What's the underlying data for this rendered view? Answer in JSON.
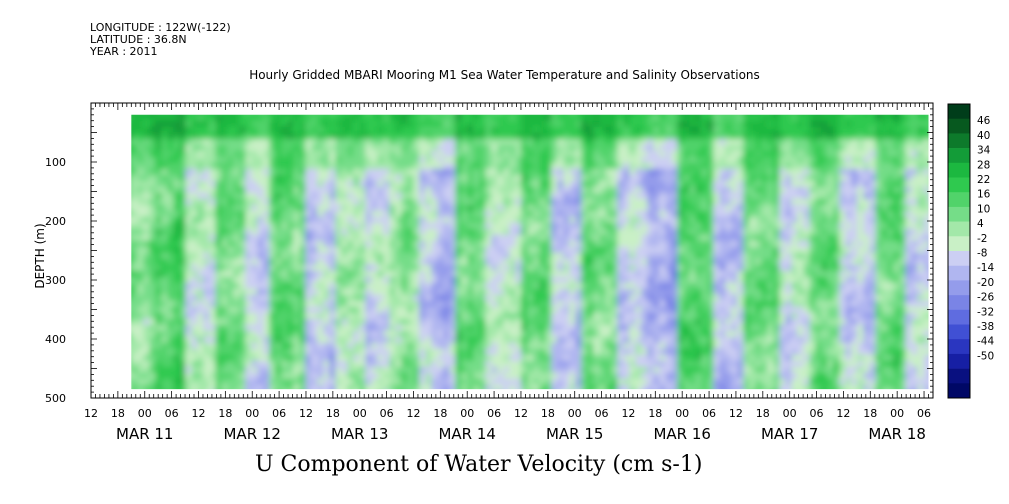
{
  "metadata": {
    "longitude": "LONGITUDE : 122W(-122)",
    "latitude": "LATITUDE : 36.8N",
    "year": "YEAR : 2011"
  },
  "footer_title": "U Component of Water Velocity (cm s-1)",
  "chart_data": {
    "type": "heatmap",
    "title": "Hourly Gridded MBARI Mooring M1 Sea Water Temperature and Salinity Observations",
    "ylabel": "DEPTH (m)",
    "xlabel": "",
    "y_axis": {
      "min": 0,
      "max": 500,
      "reversed": true,
      "ticks": [
        100,
        200,
        300,
        400,
        500
      ]
    },
    "x_axis": {
      "start": "2011-03-10T12:00",
      "end": "2011-03-18T08:00",
      "tick_labels": [
        "12",
        "18",
        "00",
        "06",
        "12",
        "18",
        "00",
        "06",
        "12",
        "18",
        "00",
        "06",
        "12",
        "18",
        "00",
        "06",
        "12",
        "18",
        "00",
        "06",
        "12",
        "18",
        "00",
        "06",
        "12",
        "18",
        "00",
        "06",
        "12",
        "18",
        "00",
        "06"
      ],
      "date_labels": [
        "MAR 11",
        "MAR 12",
        "MAR 13",
        "MAR 14",
        "MAR 15",
        "MAR 16",
        "MAR 17",
        "MAR 18"
      ]
    },
    "data_extent": {
      "time_start": "2011-03-10T21:00",
      "time_end": "2011-03-18T07:00",
      "depth_min": 20,
      "depth_max": 485
    },
    "colorbar": {
      "levels": [
        46,
        40,
        34,
        28,
        22,
        16,
        10,
        4,
        -2,
        -8,
        -14,
        -20,
        -26,
        -32,
        -38,
        -44,
        -50
      ],
      "colors_high_to_low": [
        "#003d1a",
        "#07591f",
        "#0d7a2b",
        "#139c38",
        "#1cb840",
        "#2fc94f",
        "#51d36a",
        "#75dd88",
        "#a3e8a9",
        "#c9f0c6",
        "#cccff3",
        "#b0b6f0",
        "#949ceb",
        "#7a84e6",
        "#5f6ce0",
        "#4050d4",
        "#2a36c0",
        "#161fa4",
        "#091080",
        "#000866"
      ]
    },
    "field_description": "U component of water velocity (cm s-1), depth vs time",
    "near_surface_mean": 20,
    "band_pattern": [
      {
        "day": 10.9,
        "value": 8
      },
      {
        "day": 11.2,
        "value": 12
      },
      {
        "day": 11.5,
        "value": -6
      },
      {
        "day": 11.8,
        "value": 6
      },
      {
        "day": 12.0,
        "value": -12
      },
      {
        "day": 12.3,
        "value": 8
      },
      {
        "day": 12.6,
        "value": -14
      },
      {
        "day": 12.9,
        "value": 6
      },
      {
        "day": 13.1,
        "value": -10
      },
      {
        "day": 13.4,
        "value": 4
      },
      {
        "day": 13.7,
        "value": -16
      },
      {
        "day": 14.0,
        "value": 10
      },
      {
        "day": 14.3,
        "value": -8
      },
      {
        "day": 14.6,
        "value": 8
      },
      {
        "day": 14.9,
        "value": -14
      },
      {
        "day": 15.2,
        "value": 6
      },
      {
        "day": 15.5,
        "value": -10
      },
      {
        "day": 15.8,
        "value": -18
      },
      {
        "day": 16.1,
        "value": 10
      },
      {
        "day": 16.4,
        "value": -12
      },
      {
        "day": 16.7,
        "value": 12
      },
      {
        "day": 17.0,
        "value": -8
      },
      {
        "day": 17.3,
        "value": 10
      },
      {
        "day": 17.6,
        "value": -12
      },
      {
        "day": 17.9,
        "value": 8
      },
      {
        "day": 18.2,
        "value": -10
      }
    ]
  }
}
